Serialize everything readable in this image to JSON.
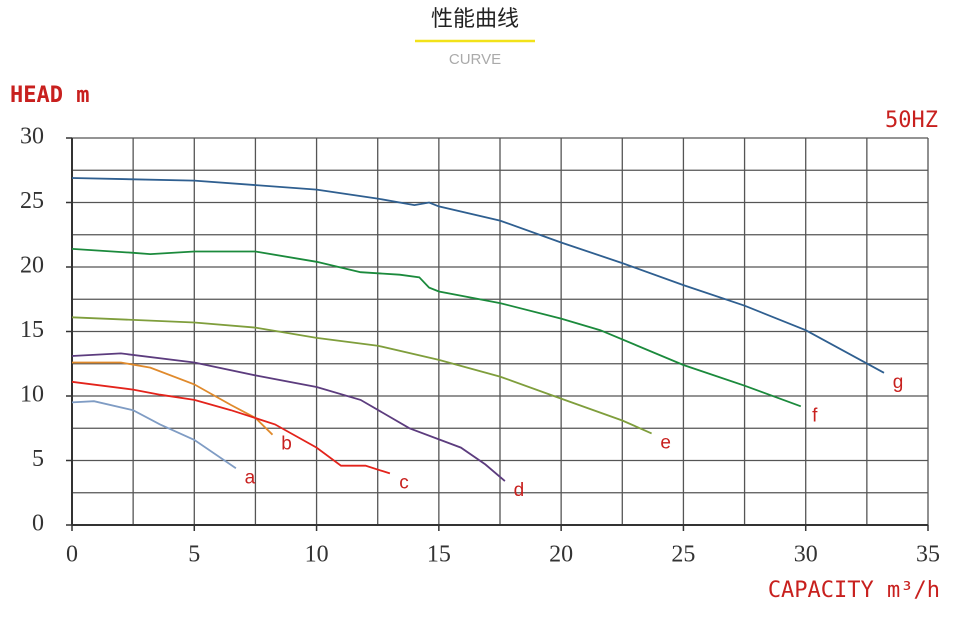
{
  "header": {
    "title": "性能曲线",
    "subtitle": "CURVE"
  },
  "chart_data": {
    "type": "line",
    "ylabel": "HEAD m",
    "xlabel": "CAPACITY m³/h",
    "annotation": "50HZ",
    "xlim": [
      0,
      35
    ],
    "ylim": [
      0,
      30
    ],
    "xticks": [
      0,
      5,
      10,
      15,
      20,
      25,
      30,
      35
    ],
    "yticks": [
      0,
      5,
      10,
      15,
      20,
      25,
      30
    ],
    "grid": true,
    "grid_minor_step": 2.5,
    "label_color": "#c8201e",
    "series": [
      {
        "name": "a",
        "color": "#7f9cc4",
        "x": [
          0,
          0.9,
          2.5,
          3.6,
          5,
          6.7
        ],
        "values": [
          9.5,
          9.6,
          8.9,
          7.8,
          6.6,
          4.4
        ]
      },
      {
        "name": "b",
        "color": "#e08a2c",
        "x": [
          0,
          2,
          3.2,
          5,
          6.5,
          7.5,
          8.2
        ],
        "values": [
          12.6,
          12.6,
          12.2,
          10.9,
          9.3,
          8.3,
          7.0
        ]
      },
      {
        "name": "c",
        "color": "#e3231b",
        "x": [
          0,
          2.5,
          3.6,
          5,
          6.5,
          8.3,
          10,
          11,
          12,
          13
        ],
        "values": [
          11.1,
          10.5,
          10.1,
          9.7,
          8.9,
          7.8,
          6.0,
          4.6,
          4.6,
          4.0
        ]
      },
      {
        "name": "d",
        "color": "#5c3c7e",
        "x": [
          0,
          2,
          5,
          7.5,
          10,
          11.8,
          13.8,
          15.9,
          16.9,
          17.7
        ],
        "values": [
          13.1,
          13.3,
          12.6,
          11.6,
          10.7,
          9.7,
          7.5,
          6.0,
          4.7,
          3.4
        ]
      },
      {
        "name": "e",
        "color": "#7f9e3c",
        "x": [
          0,
          5,
          7.5,
          10,
          12.5,
          15,
          17.5,
          20,
          22.5,
          23.7
        ],
        "values": [
          16.1,
          15.7,
          15.3,
          14.5,
          13.9,
          12.8,
          11.5,
          9.8,
          8.1,
          7.1
        ]
      },
      {
        "name": "f",
        "color": "#1b8a3c",
        "x": [
          0,
          2.5,
          3.2,
          5,
          7.5,
          10,
          11.8,
          13.4,
          14.2,
          14.6,
          15,
          17.5,
          20,
          21.6,
          25,
          27.5,
          29.8
        ],
        "values": [
          21.4,
          21.1,
          21.0,
          21.2,
          21.2,
          20.4,
          19.6,
          19.4,
          19.2,
          18.4,
          18.1,
          17.2,
          16.0,
          15.1,
          12.4,
          10.8,
          9.2
        ]
      },
      {
        "name": "g",
        "color": "#2f5f90",
        "x": [
          0,
          5,
          10,
          12.5,
          14,
          14.6,
          15,
          17.5,
          20,
          22.5,
          25,
          27.5,
          30,
          33.2
        ],
        "values": [
          26.9,
          26.7,
          26.0,
          25.3,
          24.8,
          25.0,
          24.7,
          23.6,
          21.9,
          20.3,
          18.6,
          17.0,
          15.1,
          11.8
        ]
      }
    ]
  }
}
